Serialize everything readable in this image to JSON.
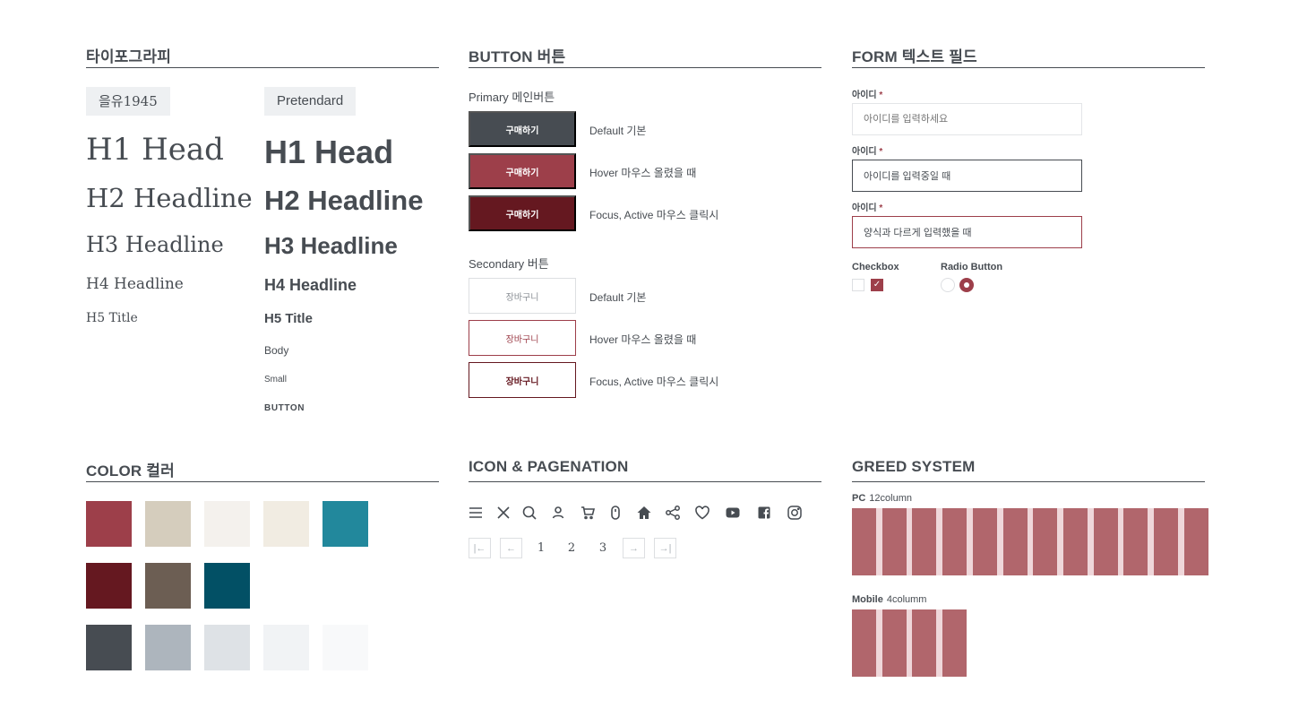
{
  "typography": {
    "title": "타이포그라피",
    "serif_font": "을유1945",
    "sans_font": "Pretendard",
    "h1": "H1 Head",
    "h2": "H2 Headline",
    "h3": "H3 Headline",
    "h4": "H4 Headline",
    "h5": "H5 Title",
    "body": "Body",
    "small": "Small",
    "button": "BUTTON"
  },
  "buttons": {
    "title": "BUTTON 버튼",
    "primary_label": "Primary 메인버튼",
    "primary_text": "구매하기",
    "secondary_label": "Secondary 버튼",
    "secondary_text": "장바구니",
    "state_default": "Default 기본",
    "state_hover": "Hover 마우스 올렸을 때",
    "state_focus": "Focus, Active 마우스 클릭시"
  },
  "form": {
    "title": "FORM 텍스트 필드",
    "field_label": "아이디",
    "required_mark": "*",
    "placeholder": "아이디를 입력하세요",
    "active_value": "아이디를 입력중일 때",
    "error_value": "양식과 다르게 입력했을 때",
    "checkbox_label": "Checkbox",
    "radio_label": "Radio Button"
  },
  "colors": {
    "title": "COLOR 컬러",
    "rows": [
      [
        "#9d3f4a",
        "#d5cdbd",
        "#f4f1ed",
        "#f1ece2",
        "#22889c"
      ],
      [
        "#651820",
        "#6c5e53",
        "#025065"
      ],
      [
        "#474c52",
        "#adb5bd",
        "#dee2e6",
        "#f1f3f5",
        "#f8f9fa"
      ]
    ]
  },
  "icons": {
    "title": "ICON & PAGENATION",
    "names": [
      "menu-icon",
      "close-icon",
      "search-icon",
      "user-icon",
      "cart-icon",
      "mouse-icon",
      "home-icon",
      "share-icon",
      "heart-icon",
      "youtube-icon",
      "facebook-icon",
      "instagram-icon"
    ],
    "pagination": {
      "first": "|←",
      "prev": "←",
      "pages": [
        "1",
        "2",
        "3"
      ],
      "next": "→",
      "last": "→|"
    }
  },
  "grid": {
    "title": "GREED SYSTEM",
    "pc_label": "PC",
    "pc_desc": "12column",
    "pc_columns": 12,
    "mobile_label": "Mobile",
    "mobile_desc": "4columm",
    "mobile_columns": 4,
    "column_color": "#b1666c",
    "gutter_color": "#efd7da"
  }
}
